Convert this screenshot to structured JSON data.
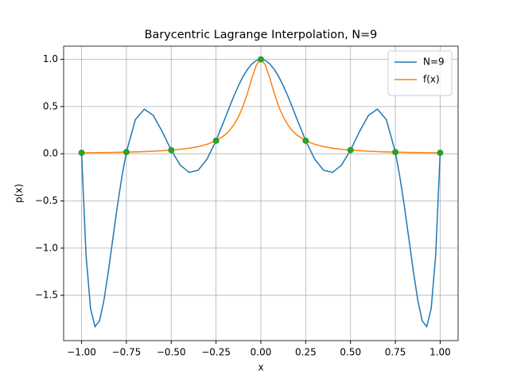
{
  "chart_data": {
    "type": "line",
    "title": "Barycentric Lagrange Interpolation, N=9",
    "xlabel": "x",
    "ylabel": "p(x)",
    "x": [
      -1,
      -0.975,
      -0.95,
      -0.925,
      -0.9,
      -0.875,
      -0.85,
      -0.825,
      -0.8,
      -0.775,
      -0.75,
      -0.7,
      -0.65,
      -0.6,
      -0.55,
      -0.5,
      -0.45,
      -0.4,
      -0.35,
      -0.3,
      -0.25,
      -0.2,
      -0.175,
      -0.15,
      -0.125,
      -0.1,
      -0.075,
      -0.05,
      -0.025,
      0,
      0.025,
      0.05,
      0.075,
      0.1,
      0.125,
      0.15,
      0.175,
      0.2,
      0.25,
      0.3,
      0.35,
      0.4,
      0.45,
      0.5,
      0.55,
      0.6,
      0.65,
      0.7,
      0.75,
      0.775,
      0.8,
      0.825,
      0.85,
      0.875,
      0.9,
      0.925,
      0.95,
      0.975,
      1
    ],
    "series": [
      {
        "name": "N=9",
        "color": "#1f77b4",
        "values": [
          0.01,
          -1.072,
          -1.638,
          -1.832,
          -1.772,
          -1.55,
          -1.24,
          -0.893,
          -0.552,
          -0.243,
          0.017,
          0.361,
          0.473,
          0.406,
          0.235,
          0.038,
          -0.12,
          -0.197,
          -0.175,
          -0.056,
          0.138,
          0.374,
          0.496,
          0.613,
          0.721,
          0.816,
          0.894,
          0.952,
          0.988,
          1.0,
          0.988,
          0.952,
          0.894,
          0.816,
          0.721,
          0.613,
          0.496,
          0.374,
          0.138,
          -0.056,
          -0.175,
          -0.197,
          -0.12,
          0.038,
          0.235,
          0.406,
          0.473,
          0.361,
          0.017,
          -0.243,
          -0.552,
          -0.893,
          -1.24,
          -1.55,
          -1.772,
          -1.832,
          -1.638,
          -1.072,
          0.01
        ]
      },
      {
        "name": "f(x)",
        "color": "#ff7f0e",
        "values": [
          0.0099,
          0.0104,
          0.011,
          0.0116,
          0.0122,
          0.0129,
          0.0137,
          0.0145,
          0.0154,
          0.0164,
          0.0175,
          0.02,
          0.0231,
          0.027,
          0.032,
          0.0385,
          0.0471,
          0.0588,
          0.0755,
          0.1,
          0.1379,
          0.2,
          0.2462,
          0.3077,
          0.3902,
          0.5,
          0.64,
          0.8,
          0.9412,
          1,
          0.9412,
          0.8,
          0.64,
          0.5,
          0.3902,
          0.3077,
          0.2462,
          0.2,
          0.1379,
          0.1,
          0.0755,
          0.0588,
          0.0471,
          0.0385,
          0.032,
          0.027,
          0.0231,
          0.02,
          0.0175,
          0.0164,
          0.0154,
          0.0145,
          0.0137,
          0.0129,
          0.0122,
          0.0116,
          0.011,
          0.0104,
          0.0099
        ]
      }
    ],
    "nodes": {
      "color": "#2ca02c",
      "x": [
        -1,
        -0.75,
        -0.5,
        -0.25,
        0,
        0.25,
        0.5,
        0.75,
        1
      ],
      "values": [
        0.0099,
        0.0175,
        0.0385,
        0.1379,
        1,
        0.1379,
        0.0385,
        0.0175,
        0.0099
      ]
    },
    "xlim": [
      -1.1,
      1.1
    ],
    "ylim": [
      -1.98,
      1.14
    ],
    "xticks": [
      {
        "value": -1,
        "label": "−1.00"
      },
      {
        "value": -0.75,
        "label": "−0.75"
      },
      {
        "value": -0.5,
        "label": "−0.50"
      },
      {
        "value": -0.25,
        "label": "−0.25"
      },
      {
        "value": 0,
        "label": "0.00"
      },
      {
        "value": 0.25,
        "label": "0.25"
      },
      {
        "value": 0.5,
        "label": "0.50"
      },
      {
        "value": 0.75,
        "label": "0.75"
      },
      {
        "value": 1,
        "label": "1.00"
      }
    ],
    "yticks": [
      {
        "value": -1.5,
        "label": "−1.5"
      },
      {
        "value": -1,
        "label": "−1.0"
      },
      {
        "value": -0.5,
        "label": "−0.5"
      },
      {
        "value": 0,
        "label": "0.0"
      },
      {
        "value": 0.5,
        "label": "0.5"
      },
      {
        "value": 1,
        "label": "1.0"
      }
    ],
    "grid": true,
    "legend": "upper right"
  }
}
